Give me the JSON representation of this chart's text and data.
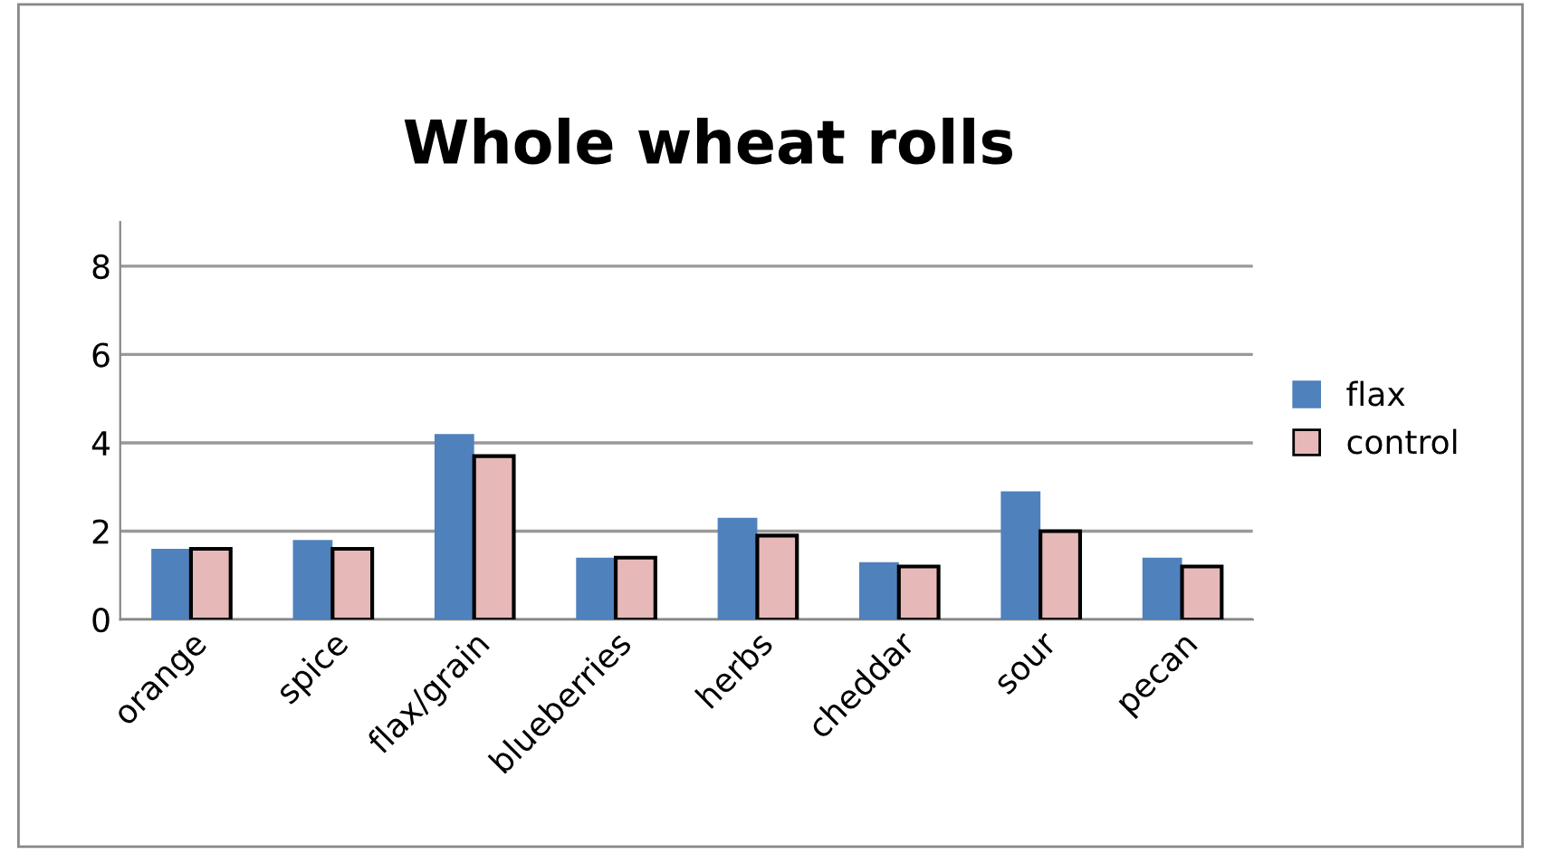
{
  "chart_data": {
    "type": "bar",
    "title": "Whole wheat rolls",
    "categories": [
      "orange",
      "spice",
      "flax/grain",
      "blueberries",
      "herbs",
      "cheddar",
      "sour",
      "pecan"
    ],
    "series": [
      {
        "name": "flax",
        "color": "#4f81bd",
        "values": [
          1.6,
          1.8,
          4.2,
          1.4,
          2.3,
          1.3,
          2.9,
          1.4
        ]
      },
      {
        "name": "control",
        "color": "#e6b9b8",
        "values": [
          1.6,
          1.6,
          3.7,
          1.4,
          1.9,
          1.2,
          2.0,
          1.2
        ]
      }
    ],
    "ylim": [
      0,
      9
    ],
    "yticks": [
      0,
      2,
      4,
      6,
      8
    ],
    "grid": "y",
    "legend": "right"
  }
}
